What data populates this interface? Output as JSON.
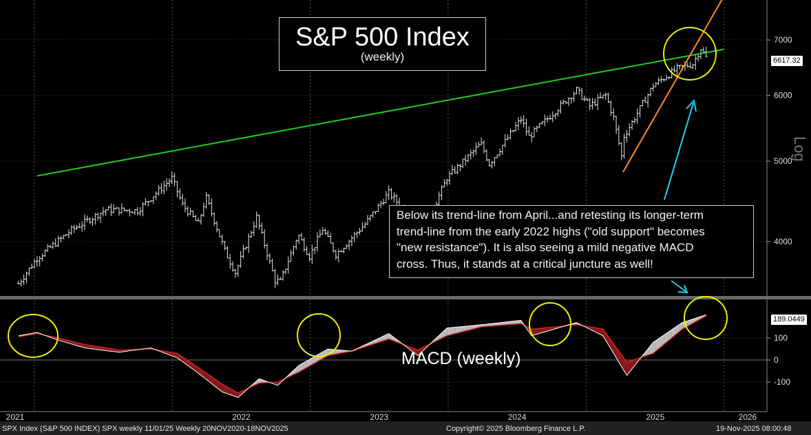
{
  "chart_data": [
    {
      "type": "ohlc",
      "title": "S&P 500 Index",
      "subtitle": "(weekly)",
      "y_axis_label": "Log",
      "y_scale": "log",
      "y_ticks": [
        4000,
        5000,
        6000,
        7000
      ],
      "y_tick_labels": [
        "4000",
        "5000",
        "6000",
        "7000"
      ],
      "last_value_label": "6617.32",
      "x_tick_labels": [
        "2021",
        "2022",
        "2023",
        "2024",
        "2025",
        "2026"
      ],
      "weekly_close_path": [
        [
          "2020-11-20",
          3560
        ],
        [
          "2021-01-08",
          3820
        ],
        [
          "2021-04-09",
          4130
        ],
        [
          "2021-07-09",
          4370
        ],
        [
          "2021-10-01",
          4360
        ],
        [
          "2021-12-31",
          4770
        ],
        [
          "2022-01-28",
          4430
        ],
        [
          "2022-03-11",
          4200
        ],
        [
          "2022-03-31",
          4530
        ],
        [
          "2022-05-20",
          3900
        ],
        [
          "2022-06-17",
          3670
        ],
        [
          "2022-08-12",
          4280
        ],
        [
          "2022-09-30",
          3590
        ],
        [
          "2022-10-14",
          3580
        ],
        [
          "2022-11-30",
          4080
        ],
        [
          "2022-12-30",
          3840
        ],
        [
          "2023-02-03",
          4140
        ],
        [
          "2023-03-10",
          3860
        ],
        [
          "2023-05-26",
          4200
        ],
        [
          "2023-07-28",
          4580
        ],
        [
          "2023-10-27",
          4120
        ],
        [
          "2023-12-29",
          4770
        ],
        [
          "2024-03-28",
          5250
        ],
        [
          "2024-04-19",
          4960
        ],
        [
          "2024-07-12",
          5620
        ],
        [
          "2024-08-02",
          5350
        ],
        [
          "2024-12-06",
          6090
        ],
        [
          "2025-01-10",
          5830
        ],
        [
          "2025-02-21",
          6010
        ],
        [
          "2025-03-14",
          5640
        ],
        [
          "2025-04-04",
          5070
        ],
        [
          "2025-04-11",
          5360
        ],
        [
          "2025-06-27",
          6170
        ],
        [
          "2025-08-29",
          6460
        ],
        [
          "2025-10-10",
          6550
        ],
        [
          "2025-10-31",
          6840
        ],
        [
          "2025-11-18",
          6617
        ]
      ],
      "trend_lines": [
        {
          "color": "#22cc22",
          "from": [
            "2021-01-08",
            4800
          ],
          "to": [
            "2025-12-31",
            6820
          ]
        },
        {
          "color": "#ff8c2a",
          "from": [
            "2025-04-08",
            4850
          ],
          "to": [
            "2025-12-31",
            7900
          ]
        }
      ],
      "annotation": [
        "Below its trend-line from April...and retesting its longer-term",
        "trend-line from the early 2022 highs (\"old support\" becomes",
        "\"new resistance\").  It is also seeing a mild negative MACD",
        "cross.  Thus, it stands at a critical juncture as well!"
      ]
    },
    {
      "type": "line",
      "label": "MACD (weekly)",
      "y_ticks": [
        100,
        0,
        -100
      ],
      "y_tick_labels": [
        "100",
        "0",
        "-100"
      ],
      "last_value_label": "189.0449",
      "series": [
        {
          "color": "#ffffff",
          "values": [
            [
              "2020-11-20",
              110
            ],
            [
              "2021-01-08",
              125
            ],
            [
              "2021-03-05",
              90
            ],
            [
              "2021-05-14",
              55
            ],
            [
              "2021-08-13",
              35
            ],
            [
              "2021-11-05",
              55
            ],
            [
              "2022-01-14",
              10
            ],
            [
              "2022-03-11",
              -60
            ],
            [
              "2022-05-13",
              -145
            ],
            [
              "2022-06-24",
              -170
            ],
            [
              "2022-08-19",
              -85
            ],
            [
              "2022-10-07",
              -115
            ],
            [
              "2022-12-02",
              -25
            ],
            [
              "2023-02-17",
              50
            ],
            [
              "2023-04-21",
              40
            ],
            [
              "2023-07-28",
              120
            ],
            [
              "2023-10-13",
              20
            ],
            [
              "2023-12-29",
              145
            ],
            [
              "2024-03-29",
              160
            ],
            [
              "2024-07-12",
              180
            ],
            [
              "2024-08-09",
              110
            ],
            [
              "2024-12-06",
              170
            ],
            [
              "2025-02-14",
              110
            ],
            [
              "2025-04-18",
              -70
            ],
            [
              "2025-06-27",
              80
            ],
            [
              "2025-09-12",
              170
            ],
            [
              "2025-11-14",
              205
            ],
            [
              "2025-11-18",
              190
            ]
          ]
        },
        {
          "color": "#cc2222",
          "values": [
            [
              "2020-11-20",
              105
            ],
            [
              "2021-01-08",
              120
            ],
            [
              "2021-03-05",
              100
            ],
            [
              "2021-05-14",
              70
            ],
            [
              "2021-08-13",
              45
            ],
            [
              "2021-11-05",
              50
            ],
            [
              "2022-01-14",
              30
            ],
            [
              "2022-03-11",
              -35
            ],
            [
              "2022-05-13",
              -110
            ],
            [
              "2022-06-24",
              -150
            ],
            [
              "2022-08-19",
              -105
            ],
            [
              "2022-10-07",
              -100
            ],
            [
              "2022-12-02",
              -55
            ],
            [
              "2023-02-17",
              20
            ],
            [
              "2023-04-21",
              40
            ],
            [
              "2023-07-28",
              95
            ],
            [
              "2023-10-13",
              45
            ],
            [
              "2023-12-29",
              110
            ],
            [
              "2024-03-29",
              150
            ],
            [
              "2024-07-12",
              165
            ],
            [
              "2024-08-09",
              140
            ],
            [
              "2024-12-06",
              160
            ],
            [
              "2025-02-14",
              140
            ],
            [
              "2025-04-18",
              -10
            ],
            [
              "2025-06-27",
              30
            ],
            [
              "2025-09-12",
              140
            ],
            [
              "2025-11-14",
              200
            ],
            [
              "2025-11-18",
              192
            ]
          ]
        }
      ],
      "highlight_circles": [
        "2021-03-05",
        "2023-08-18",
        "2024-10-04",
        "2025-11-07"
      ]
    }
  ],
  "footer": {
    "left": "SPX Index (S&P 500 INDEX) SPX weekly  11/01/25 Weekly 20NOV2020-18NOV2025",
    "center": "Copyright© 2025 Bloomberg Finance L.P.",
    "right": "19-Nov-2025 08:00:48"
  }
}
